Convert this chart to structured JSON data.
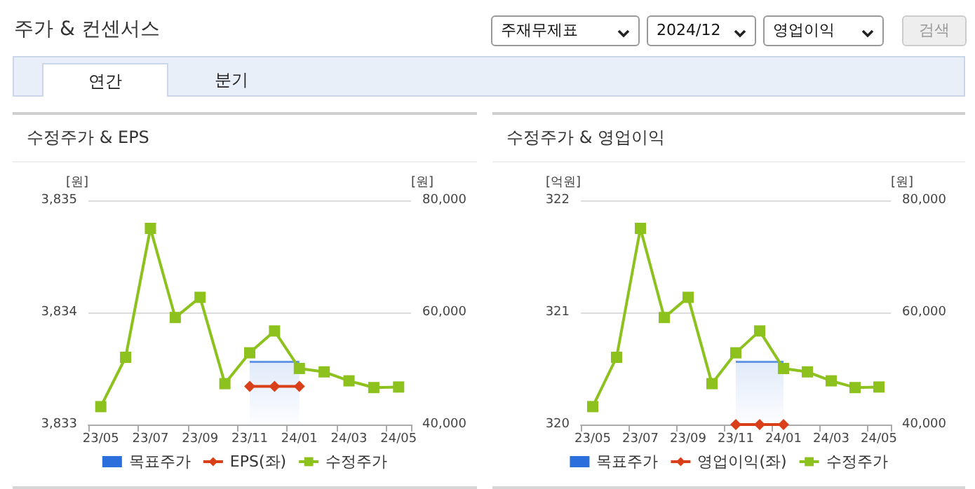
{
  "chart_data": [
    {
      "type": "other",
      "title": "주가 & 컨센서스",
      "annotations": [
        "주재무제표",
        "2024/12",
        "영업이익",
        "검색",
        "연간",
        "분기"
      ]
    },
    {
      "type": "line",
      "title": "수정주가 & EPS",
      "ylabel": "[원]",
      "y2label": "[원]",
      "categories": [
        "23/05",
        null,
        "23/07",
        null,
        "23/09",
        null,
        "23/11",
        null,
        "24/01",
        null,
        "24/03",
        null,
        "24/05"
      ],
      "series": [
        {
          "name": "목표주가",
          "type": "area",
          "axis": "y2",
          "color": "#2a6fdb",
          "marker": "none",
          "values": [
            null,
            null,
            null,
            null,
            null,
            null,
            51200,
            51200,
            51200,
            null,
            null,
            null,
            null
          ]
        },
        {
          "name": "EPS(좌)",
          "type": "line",
          "color": "#d9401a",
          "marker": "diamond",
          "values": [
            null,
            null,
            null,
            null,
            null,
            null,
            3833.34,
            3833.34,
            3833.34,
            null,
            null,
            null,
            null
          ]
        },
        {
          "name": "수정주가",
          "type": "line",
          "axis": "y2",
          "color": "#8cc11e",
          "marker": "square",
          "values": [
            43200,
            52000,
            75000,
            59100,
            62700,
            47300,
            52800,
            56700,
            50000,
            49400,
            47800,
            46600,
            46700
          ]
        }
      ],
      "ylim": [
        3833,
        3835
      ],
      "yticks": [
        {
          "value": 3833,
          "label": "3,833"
        },
        {
          "value": 3834,
          "label": "3,834"
        },
        {
          "value": 3835,
          "label": "3,835"
        }
      ],
      "y2lim": [
        40000,
        80000
      ],
      "y2ticks": [
        {
          "value": 40000,
          "label": "40,000"
        },
        {
          "value": 60000,
          "label": "60,000"
        },
        {
          "value": 80000,
          "label": "80,000"
        }
      ],
      "grid": "y",
      "legend": "bottom"
    },
    {
      "type": "line",
      "title": "수정주가 & 영업이익",
      "ylabel": "[억원]",
      "y2label": "[원]",
      "categories": [
        "23/05",
        null,
        "23/07",
        null,
        "23/09",
        null,
        "23/11",
        null,
        "24/01",
        null,
        "24/03",
        null,
        "24/05"
      ],
      "series": [
        {
          "name": "목표주가",
          "type": "area",
          "axis": "y2",
          "color": "#2a6fdb",
          "marker": "none",
          "values": [
            null,
            null,
            null,
            null,
            null,
            null,
            51200,
            51200,
            51200,
            null,
            null,
            null,
            null
          ]
        },
        {
          "name": "영업이익(좌)",
          "type": "line",
          "color": "#d9401a",
          "marker": "diamond",
          "values": [
            null,
            null,
            null,
            null,
            null,
            null,
            320,
            320,
            320,
            null,
            null,
            null,
            null
          ]
        },
        {
          "name": "수정주가",
          "type": "line",
          "axis": "y2",
          "color": "#8cc11e",
          "marker": "square",
          "values": [
            43200,
            52000,
            75000,
            59100,
            62700,
            47300,
            52800,
            56700,
            50000,
            49400,
            47800,
            46600,
            46700
          ]
        }
      ],
      "ylim": [
        320,
        322
      ],
      "yticks": [
        320,
        321,
        322
      ],
      "y2lim": [
        40000,
        80000
      ],
      "y2ticks": [
        {
          "value": 40000,
          "label": "40,000"
        },
        {
          "value": 60000,
          "label": "60,000"
        },
        {
          "value": 80000,
          "label": "80,000"
        }
      ],
      "grid": "y",
      "legend": "bottom"
    }
  ]
}
